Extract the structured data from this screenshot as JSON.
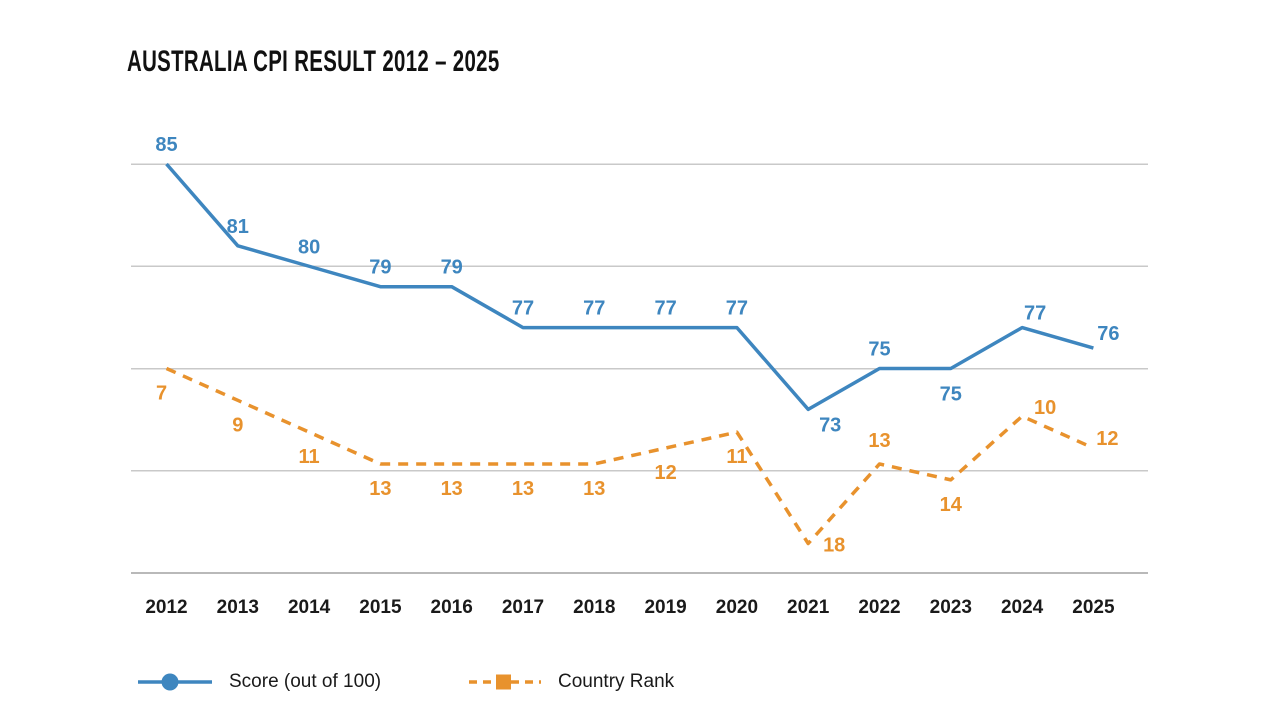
{
  "title": "AUSTRALIA CPI RESULT 2012 – 2025",
  "legend": [
    {
      "label": "Score (out of 100)"
    },
    {
      "label": "Country Rank"
    }
  ],
  "colors": {
    "score": "#3e86bf",
    "rank": "#e8922d",
    "grid": "#c9c9c9",
    "axis": "#b9b9b9",
    "text": "#1a1a1a",
    "title": "#111111"
  },
  "chart_data": {
    "type": "line",
    "title": "AUSTRALIA CPI RESULT 2012 – 2025",
    "categories": [
      "2012",
      "2013",
      "2014",
      "2015",
      "2016",
      "2017",
      "2018",
      "2019",
      "2020",
      "2021",
      "2022",
      "2023",
      "2024",
      "2025"
    ],
    "series": [
      {
        "name": "Score (out of 100)",
        "style": "solid",
        "marker": "circle",
        "color": "#3e86bf",
        "values": [
          85,
          81,
          80,
          79,
          79,
          77,
          77,
          77,
          77,
          73,
          75,
          75,
          77,
          76
        ]
      },
      {
        "name": "Country Rank",
        "style": "dashed",
        "marker": "square",
        "color": "#e8922d",
        "values": [
          7,
          9,
          11,
          13,
          13,
          13,
          13,
          12,
          11,
          18,
          13,
          14,
          10,
          12
        ]
      }
    ],
    "xlabel": "",
    "ylabel": "",
    "grid": "horizontal-only",
    "legend_position": "bottom-left",
    "axis_tick_labels_visible": false,
    "data_labels_visible": true,
    "score_axis_implied": {
      "min": 65,
      "max": 85,
      "gridline_step": 5
    },
    "rank_axis": {
      "inverted": true
    }
  }
}
